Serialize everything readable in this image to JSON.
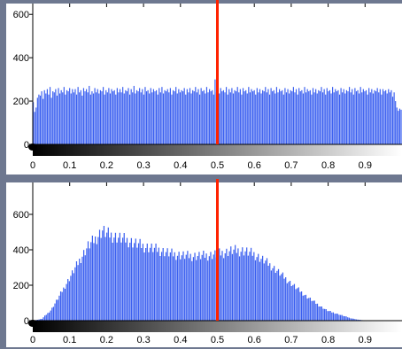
{
  "colors": {
    "background": "#6e7890",
    "bar": "#3a5ff0",
    "marker": "#ff2200",
    "gradient_start": "#000000",
    "gradient_end": "#ffffff"
  },
  "chart_data": [
    {
      "type": "bar",
      "title": "",
      "xlabel": "",
      "ylabel": "",
      "xlim": [
        0,
        1
      ],
      "ylim": [
        0,
        650
      ],
      "x_ticks": [
        "0",
        "0.1",
        "0.2",
        "0.3",
        "0.4",
        "0.5",
        "0.6",
        "0.7",
        "0.8",
        "0.9"
      ],
      "y_ticks": [
        "0",
        "200",
        "400",
        "600"
      ],
      "marker_x": 0.5,
      "bins": 256,
      "values": [
        195,
        150,
        170,
        215,
        230,
        225,
        245,
        210,
        250,
        235,
        255,
        230,
        265,
        215,
        245,
        240,
        255,
        225,
        260,
        235,
        250,
        240,
        265,
        230,
        250,
        245,
        260,
        235,
        255,
        240,
        255,
        230,
        265,
        240,
        250,
        225,
        260,
        245,
        255,
        240,
        270,
        230,
        245,
        235,
        260,
        240,
        255,
        235,
        250,
        245,
        265,
        230,
        250,
        240,
        260,
        235,
        255,
        245,
        250,
        230,
        260,
        240,
        255,
        240,
        265,
        235,
        250,
        245,
        260,
        230,
        255,
        240,
        270,
        235,
        250,
        245,
        260,
        240,
        255,
        230,
        265,
        245,
        250,
        235,
        260,
        240,
        255,
        245,
        250,
        230,
        260,
        240,
        265,
        235,
        250,
        245,
        255,
        240,
        260,
        230,
        250,
        245,
        265,
        235,
        255,
        240,
        250,
        245,
        260,
        230,
        255,
        240,
        260,
        235,
        250,
        245,
        265,
        240,
        255,
        230,
        260,
        245,
        250,
        235,
        265,
        240,
        255,
        245,
        250,
        230,
        300,
        240,
        255,
        235,
        260,
        245,
        250,
        240,
        265,
        230,
        255,
        240,
        260,
        235,
        250,
        245,
        265,
        240,
        255,
        230,
        260,
        245,
        250,
        235,
        265,
        240,
        255,
        245,
        250,
        230,
        260,
        240,
        255,
        235,
        250,
        245,
        265,
        240,
        255,
        230,
        260,
        245,
        250,
        235,
        265,
        240,
        255,
        245,
        250,
        230,
        260,
        240,
        255,
        235,
        250,
        245,
        265,
        240,
        255,
        230,
        260,
        245,
        250,
        235,
        265,
        240,
        255,
        245,
        250,
        230,
        260,
        240,
        255,
        235,
        250,
        245,
        265,
        240,
        255,
        230,
        260,
        245,
        250,
        235,
        265,
        240,
        255,
        245,
        250,
        230,
        260,
        240,
        255,
        235,
        250,
        245,
        265,
        240,
        255,
        230,
        260,
        245,
        250,
        235,
        265,
        240,
        255,
        245,
        250,
        230,
        260,
        240,
        255,
        235,
        250,
        245,
        260,
        240,
        255,
        230,
        255,
        245,
        250,
        235,
        255,
        240,
        250,
        220,
        240,
        200,
        170,
        155,
        165,
        160
      ]
    },
    {
      "type": "bar",
      "title": "",
      "xlabel": "",
      "ylabel": "",
      "xlim": [
        0,
        1
      ],
      "ylim": [
        0,
        780
      ],
      "x_ticks": [
        "0",
        "0.1",
        "0.2",
        "0.3",
        "0.4",
        "0.5",
        "0.6",
        "0.7",
        "0.8",
        "0.9"
      ],
      "y_ticks": [
        "0",
        "200",
        "400",
        "600"
      ],
      "marker_x": 0.5,
      "bins": 256,
      "shape_points": [
        [
          0,
          0
        ],
        [
          0.025,
          10
        ],
        [
          0.05,
          60
        ],
        [
          0.07,
          130
        ],
        [
          0.1,
          240
        ],
        [
          0.13,
          350
        ],
        [
          0.15,
          420
        ],
        [
          0.17,
          460
        ],
        [
          0.19,
          510
        ],
        [
          0.2,
          490
        ],
        [
          0.23,
          470
        ],
        [
          0.26,
          450
        ],
        [
          0.3,
          420
        ],
        [
          0.34,
          400
        ],
        [
          0.38,
          375
        ],
        [
          0.42,
          365
        ],
        [
          0.46,
          365
        ],
        [
          0.5,
          375
        ],
        [
          0.54,
          395
        ],
        [
          0.57,
          395
        ],
        [
          0.6,
          375
        ],
        [
          0.63,
          335
        ],
        [
          0.66,
          285
        ],
        [
          0.7,
          210
        ],
        [
          0.74,
          140
        ],
        [
          0.78,
          80
        ],
        [
          0.8,
          55
        ],
        [
          0.83,
          35
        ],
        [
          0.86,
          15
        ],
        [
          0.88,
          6
        ],
        [
          0.9,
          1
        ],
        [
          0.92,
          0
        ],
        [
          1,
          0
        ]
      ]
    }
  ]
}
